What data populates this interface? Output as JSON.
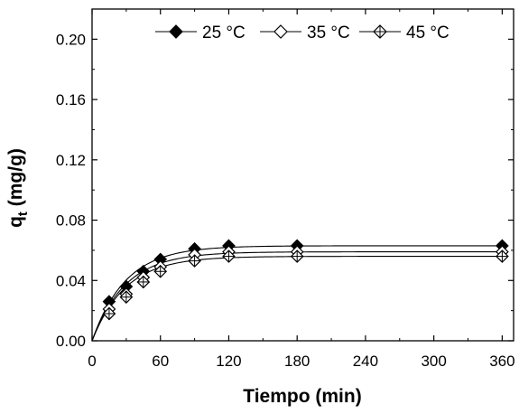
{
  "chart_data": {
    "type": "line",
    "xlabel": "Tiempo (min)",
    "ylabel_main": "q",
    "ylabel_sub": "t",
    "ylabel_unit": " (mg/g)",
    "xlim": [
      0,
      370
    ],
    "ylim": [
      0,
      0.22
    ],
    "x_ticks": [
      0,
      60,
      120,
      180,
      240,
      300,
      360
    ],
    "x_tick_labels": [
      "0",
      "60",
      "120",
      "180",
      "240",
      "300",
      "360"
    ],
    "y_ticks": [
      0,
      0.04,
      0.08,
      0.12,
      0.16,
      0.2
    ],
    "y_tick_labels": [
      "0.00",
      "0.04",
      "0.08",
      "0.12",
      "0.16",
      "0.20"
    ],
    "grid": false,
    "legend_position": "top",
    "series": [
      {
        "name": "25 °C",
        "marker": "filled-diamond",
        "x": [
          0,
          15,
          30,
          45,
          60,
          90,
          120,
          180,
          360
        ],
        "y": [
          0,
          0.026,
          0.036,
          0.046,
          0.054,
          0.061,
          0.063,
          0.063,
          0.063
        ],
        "fit_qe": 0.063,
        "fit_k": 0.034
      },
      {
        "name": "35 °C",
        "marker": "open-diamond",
        "x": [
          0,
          15,
          30,
          45,
          60,
          90,
          120,
          180,
          360
        ],
        "y": [
          0,
          0.021,
          0.031,
          0.042,
          0.049,
          0.057,
          0.059,
          0.059,
          0.059
        ],
        "fit_qe": 0.059,
        "fit_k": 0.034
      },
      {
        "name": "45 °C",
        "marker": "crossed-diamond",
        "x": [
          0,
          15,
          30,
          45,
          60,
          90,
          120,
          180,
          360
        ],
        "y": [
          0,
          0.018,
          0.029,
          0.039,
          0.046,
          0.053,
          0.056,
          0.056,
          0.056
        ],
        "fit_qe": 0.056,
        "fit_k": 0.034
      }
    ]
  }
}
